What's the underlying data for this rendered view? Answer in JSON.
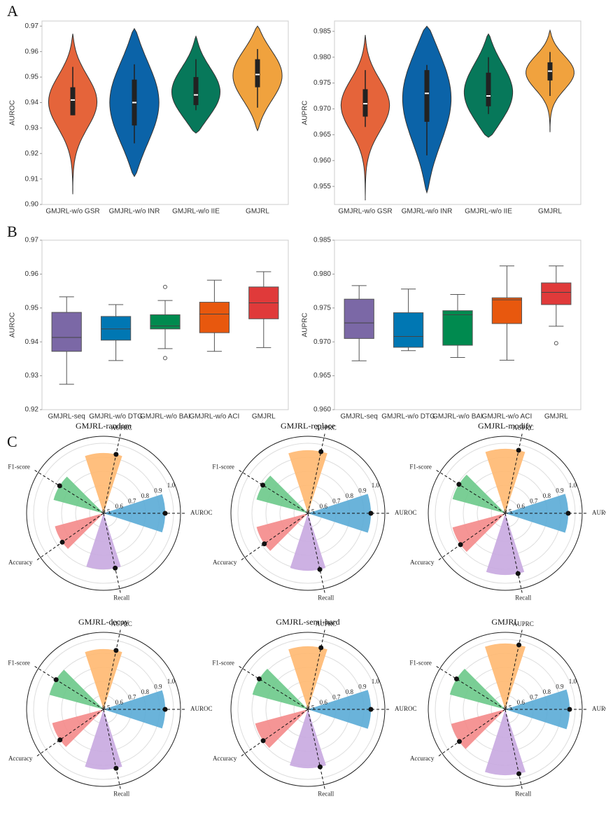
{
  "panels": [
    "A",
    "B",
    "C"
  ],
  "chart_data": [
    {
      "type": "violin",
      "ylabel": "AUROC",
      "categories": [
        "GMJRL-w/o GSR",
        "GMJRL-w/o INR",
        "GMJRL-w/o IIE",
        "GMJRL"
      ],
      "colors": [
        "#e5643a",
        "#0b63a8",
        "#07785a",
        "#f0a23e"
      ],
      "min": [
        0.904,
        0.911,
        0.928,
        0.929
      ],
      "max": [
        0.967,
        0.969,
        0.966,
        0.97
      ],
      "whislo": [
        0.935,
        0.924,
        0.937,
        0.938
      ],
      "q1": [
        0.935,
        0.931,
        0.939,
        0.946
      ],
      "median": [
        0.941,
        0.94,
        0.943,
        0.951
      ],
      "q3": [
        0.946,
        0.949,
        0.95,
        0.957
      ],
      "whishi": [
        0.954,
        0.955,
        0.957,
        0.961
      ],
      "ylim": [
        0.9,
        0.972
      ],
      "yticks": [
        {
          "value": 0.9,
          "label": "0.90"
        },
        0.91,
        0.92,
        0.93,
        0.94,
        0.95,
        0.96,
        0.97
      ]
    },
    {
      "type": "violin",
      "ylabel": "AUPRC",
      "categories": [
        "GMJRL-w/o GSR",
        "GMJRL-w/o INR",
        "GMJRL-w/o IIE",
        "GMJRL"
      ],
      "colors": [
        "#e5643a",
        "#0b63a8",
        "#07785a",
        "#f0a23e"
      ],
      "min": [
        0.9523,
        0.9538,
        0.9645,
        0.9655
      ],
      "max": [
        0.9843,
        0.986,
        0.9845,
        0.9852
      ],
      "whislo": [
        0.9665,
        0.961,
        0.969,
        0.9725
      ],
      "q1": [
        0.9685,
        0.9675,
        0.9705,
        0.9755
      ],
      "median": [
        0.971,
        0.973,
        0.9725,
        0.9773
      ],
      "q3": [
        0.9738,
        0.9775,
        0.977,
        0.979
      ],
      "whishi": [
        0.9775,
        0.9785,
        0.98,
        0.981
      ],
      "ylim": [
        0.9515,
        0.987
      ],
      "yticks": [
        0.955,
        {
          "value": 0.96,
          "label": "0.960"
        },
        0.965,
        {
          "value": 0.97,
          "label": "0.970"
        },
        0.975,
        {
          "value": 0.98,
          "label": "0.980"
        },
        0.985
      ]
    },
    {
      "type": "box",
      "ylabel": "AUROC",
      "categories": [
        "GMJRL-seq",
        "GMJRL-w/o DTG",
        "GMJRL-w/o BAI",
        "GMJRL-w/o ACI",
        "GMJRL"
      ],
      "colors": [
        "#7b68a6",
        "#0077b3",
        "#008a4f",
        "#e8580e",
        "#e03a3a"
      ],
      "whislo": [
        0.9275,
        0.9345,
        0.938,
        0.9372,
        0.9383
      ],
      "q1": [
        0.9372,
        0.9405,
        0.9438,
        0.9427,
        0.9468
      ],
      "median": [
        0.9413,
        0.9438,
        0.9447,
        0.9482,
        0.9515
      ],
      "q3": [
        0.9487,
        0.9475,
        0.948,
        0.9517,
        0.9562
      ],
      "whishi": [
        0.9533,
        0.951,
        0.9522,
        0.9582,
        0.9607
      ],
      "fliers": [
        [],
        [],
        [
          0.9562,
          0.9352
        ],
        [],
        []
      ],
      "ylim": [
        0.92,
        0.97
      ],
      "yticks": [
        0.92,
        0.93,
        0.94,
        0.95,
        0.96,
        0.97
      ]
    },
    {
      "type": "box",
      "ylabel": "AUPRC",
      "categories": [
        "GMJRL-seq",
        "GMJRL-w/o DTG",
        "GMJRL-w/o BAI",
        "GMJRL-w/o ACI",
        "GMJRL"
      ],
      "colors": [
        "#7b68a6",
        "#0077b3",
        "#008a4f",
        "#e8580e",
        "#e03a3a"
      ],
      "whislo": [
        0.9672,
        0.9687,
        0.9677,
        0.9673,
        0.9723
      ],
      "q1": [
        0.9705,
        0.9692,
        0.9695,
        0.9727,
        0.9755
      ],
      "median": [
        0.9728,
        0.9708,
        0.974,
        0.9762,
        0.9773
      ],
      "q3": [
        0.9763,
        0.9743,
        0.9746,
        0.9765,
        0.9787
      ],
      "whishi": [
        0.9783,
        0.9778,
        0.977,
        0.9812,
        0.9812
      ],
      "fliers": [
        [],
        [],
        [],
        [],
        [
          0.9698
        ]
      ],
      "ylim": [
        0.96,
        0.985
      ],
      "yticks": [
        {
          "value": 0.96,
          "label": "0.960"
        },
        0.965,
        {
          "value": 0.97,
          "label": "0.970"
        },
        0.975,
        {
          "value": 0.98,
          "label": "0.980"
        },
        0.985
      ]
    },
    {
      "type": "polar",
      "title": "GMJRL-random",
      "categories": [
        "AUROC",
        "AUPRC",
        "F1-score",
        "Accuracy",
        "Recall"
      ],
      "colors": [
        "#5aabd6",
        "#ffb870",
        "#6cc98a",
        "#f48a8a",
        "#c8a8e0"
      ],
      "values": [
        0.94,
        0.93,
        0.87,
        0.86,
        0.9
      ],
      "rlim": [
        0.5,
        1.05
      ],
      "rticks": [
        0.5,
        0.6,
        0.7,
        0.8,
        0.9,
        {
          "value": 1.0,
          "label": "1.0"
        }
      ]
    },
    {
      "type": "polar",
      "title": "GMJRL-replace",
      "categories": [
        "AUROC",
        "AUPRC",
        "F1-score",
        "Accuracy",
        "Recall"
      ],
      "colors": [
        "#5aabd6",
        "#ffb870",
        "#6cc98a",
        "#f48a8a",
        "#c8a8e0"
      ],
      "values": [
        0.95,
        0.95,
        0.88,
        0.88,
        0.91
      ],
      "rlim": [
        0.5,
        1.05
      ],
      "rticks": [
        0.5,
        0.6,
        0.7,
        0.8,
        0.9,
        {
          "value": 1.0,
          "label": "1.0"
        }
      ]
    },
    {
      "type": "polar",
      "title": "GMJRL-modify",
      "categories": [
        "AUROC",
        "AUPRC",
        "F1-score",
        "Accuracy",
        "Recall"
      ],
      "colors": [
        "#5aabd6",
        "#ffb870",
        "#6cc98a",
        "#f48a8a",
        "#c8a8e0"
      ],
      "values": [
        0.95,
        0.96,
        0.89,
        0.89,
        0.94
      ],
      "rlim": [
        0.5,
        1.05
      ],
      "rticks": [
        0.5,
        0.6,
        0.7,
        0.8,
        0.9,
        {
          "value": 1.0,
          "label": "1.0"
        }
      ]
    },
    {
      "type": "polar",
      "title": "GMJRL-decoy",
      "categories": [
        "AUROC",
        "AUPRC",
        "F1-score",
        "Accuracy",
        "Recall"
      ],
      "colors": [
        "#5aabd6",
        "#ffb870",
        "#6cc98a",
        "#f48a8a",
        "#c8a8e0"
      ],
      "values": [
        0.94,
        0.93,
        0.9,
        0.88,
        0.93
      ],
      "rlim": [
        0.5,
        1.05
      ],
      "rticks": [
        0.5,
        0.6,
        0.7,
        0.8,
        0.9,
        {
          "value": 1.0,
          "label": "1.0"
        }
      ]
    },
    {
      "type": "polar",
      "title": "GMJRL-semi-hard",
      "categories": [
        "AUROC",
        "AUPRC",
        "F1-score",
        "Accuracy",
        "Recall"
      ],
      "colors": [
        "#5aabd6",
        "#ffb870",
        "#6cc98a",
        "#f48a8a",
        "#c8a8e0"
      ],
      "values": [
        0.95,
        0.95,
        0.91,
        0.89,
        0.92
      ],
      "rlim": [
        0.5,
        1.05
      ],
      "rticks": [
        0.5,
        0.6,
        0.7,
        0.8,
        0.9,
        {
          "value": 1.0,
          "label": "1.0"
        }
      ]
    },
    {
      "type": "polar",
      "title": "GMJRL",
      "categories": [
        "AUROC",
        "AUPRC",
        "F1-score",
        "Accuracy",
        "Recall"
      ],
      "colors": [
        "#5aabd6",
        "#ffb870",
        "#6cc98a",
        "#f48a8a",
        "#c8a8e0"
      ],
      "values": [
        0.96,
        0.97,
        0.91,
        0.9,
        0.97
      ],
      "rlim": [
        0.5,
        1.05
      ],
      "rticks": [
        0.5,
        0.6,
        0.7,
        0.8,
        0.9,
        {
          "value": 1.0,
          "label": "1.0"
        }
      ]
    }
  ]
}
